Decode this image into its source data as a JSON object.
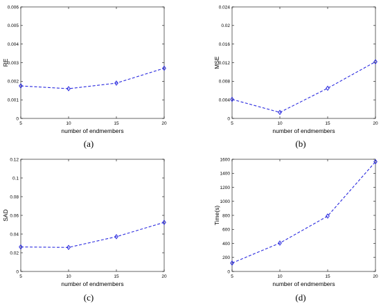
{
  "figure": {
    "series_color": "#2a2adf"
  },
  "chart_data": [
    {
      "type": "line",
      "caption": "(a)",
      "xlabel": "number of endmembers",
      "ylabel": "RE",
      "x": [
        5,
        10,
        15,
        20
      ],
      "x_ticks": [
        5,
        10,
        15,
        20
      ],
      "x_tick_labels": [
        "5",
        "10",
        "15",
        "20"
      ],
      "xlim": [
        5,
        20
      ],
      "ylim": [
        0,
        0.006
      ],
      "y_ticks": [
        0,
        0.001,
        0.002,
        0.003,
        0.004,
        0.005,
        0.006
      ],
      "y_tick_labels": [
        "0",
        "0.001",
        "0.002",
        "0.003",
        "0.004",
        "0.005",
        "0.006"
      ],
      "series": [
        {
          "values": [
            0.00175,
            0.0016,
            0.0019,
            0.0027
          ]
        }
      ],
      "marker": "diamond",
      "line_style": "dashed",
      "grid": false
    },
    {
      "type": "line",
      "caption": "(b)",
      "xlabel": "number of endmembers",
      "ylabel": "MSE",
      "x": [
        5,
        10,
        15,
        20
      ],
      "x_ticks": [
        5,
        10,
        15,
        20
      ],
      "x_tick_labels": [
        "5",
        "10",
        "15",
        "20"
      ],
      "xlim": [
        5,
        20
      ],
      "ylim": [
        0,
        0.024
      ],
      "y_ticks": [
        0,
        0.004,
        0.008,
        0.012,
        0.016,
        0.02,
        0.024
      ],
      "y_tick_labels": [
        "0",
        "0.004",
        "0.008",
        "0.012",
        "0.016",
        "0.02",
        "0.024"
      ],
      "series": [
        {
          "values": [
            0.0041,
            0.0013,
            0.0065,
            0.0122
          ]
        }
      ],
      "marker": "diamond",
      "line_style": "dashed",
      "grid": false
    },
    {
      "type": "line",
      "caption": "(c)",
      "xlabel": "number of endmembers",
      "ylabel": "SAD",
      "x": [
        5,
        10,
        15,
        20
      ],
      "x_ticks": [
        5,
        10,
        15,
        20
      ],
      "x_tick_labels": [
        "5",
        "10",
        "15",
        "20"
      ],
      "xlim": [
        5,
        20
      ],
      "ylim": [
        0,
        0.12
      ],
      "y_ticks": [
        0,
        0.02,
        0.04,
        0.06,
        0.08,
        0.1,
        0.12
      ],
      "y_tick_labels": [
        "0",
        "0.02",
        "0.04",
        "0.06",
        "0.08",
        "0.1",
        "0.12"
      ],
      "series": [
        {
          "values": [
            0.0262,
            0.0257,
            0.0372,
            0.0525
          ]
        }
      ],
      "marker": "diamond",
      "line_style": "dashed",
      "grid": false
    },
    {
      "type": "line",
      "caption": "(d)",
      "xlabel": "number of endmembers",
      "ylabel": "Time(s)",
      "x": [
        5,
        10,
        15,
        20
      ],
      "x_ticks": [
        5,
        10,
        15,
        20
      ],
      "x_tick_labels": [
        "5",
        "10",
        "15",
        "20"
      ],
      "xlim": [
        5,
        20
      ],
      "ylim": [
        0,
        1600
      ],
      "y_ticks": [
        0,
        200,
        400,
        600,
        800,
        1000,
        1200,
        1400,
        1600
      ],
      "y_tick_labels": [
        "0",
        "200",
        "400",
        "600",
        "800",
        "1000",
        "1200",
        "1400",
        "1600"
      ],
      "series": [
        {
          "values": [
            120,
            405,
            790,
            1565
          ]
        }
      ],
      "marker": "diamond",
      "line_style": "dashed",
      "grid": false
    }
  ]
}
